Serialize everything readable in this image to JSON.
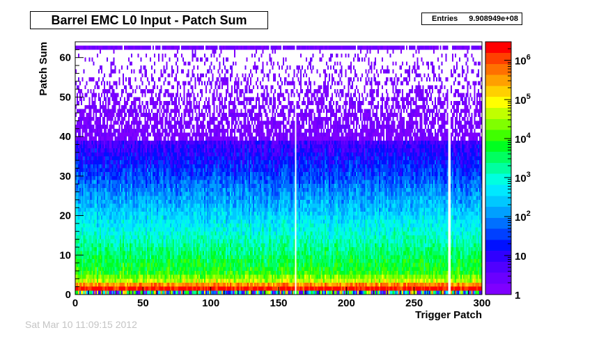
{
  "title": "Barrel EMC L0 Input - Patch Sum",
  "stats": {
    "label": "Entries",
    "value": "9.908949e+08"
  },
  "footer_text": "Sat Mar 10 11:09:15 2012",
  "chart_data": {
    "type": "heatmap",
    "title": "Barrel EMC L0 Input - Patch Sum",
    "xlabel": "Trigger Patch",
    "ylabel": "Patch Sum",
    "xlim": [
      0,
      300
    ],
    "ylim": [
      0,
      64
    ],
    "x_ticks": [
      0,
      50,
      100,
      150,
      200,
      250,
      300
    ],
    "y_ticks": [
      0,
      10,
      20,
      30,
      40,
      50,
      60
    ],
    "z_scale": "log",
    "zlim": [
      1,
      3000000
    ],
    "z_ticks": [
      {
        "value": 1,
        "label": "1"
      },
      {
        "value": 10,
        "label": "10"
      },
      {
        "value": 100,
        "label": "10",
        "exp": "2"
      },
      {
        "value": 1000,
        "label": "10",
        "exp": "3"
      },
      {
        "value": 10000,
        "label": "10",
        "exp": "4"
      },
      {
        "value": 100000,
        "label": "10",
        "exp": "5"
      },
      {
        "value": 1000000,
        "label": "10",
        "exp": "6"
      }
    ],
    "x_bins": 300,
    "y_bins": 64,
    "entries": "9.908949e+08",
    "empty_patches": [
      162,
      275,
      276
    ],
    "palette": [
      "#7f00ff",
      "#6a00ff",
      "#5000ff",
      "#3000ff",
      "#0010ff",
      "#0040ff",
      "#0070ff",
      "#00a0ff",
      "#00c8ff",
      "#00e8ff",
      "#00ffe0",
      "#00ffa0",
      "#00ff60",
      "#00ff20",
      "#40ff00",
      "#80ff00",
      "#c0ff00",
      "#ffff00",
      "#ffd000",
      "#ffa000",
      "#ff7000",
      "#ff4000",
      "#ff0000"
    ]
  }
}
